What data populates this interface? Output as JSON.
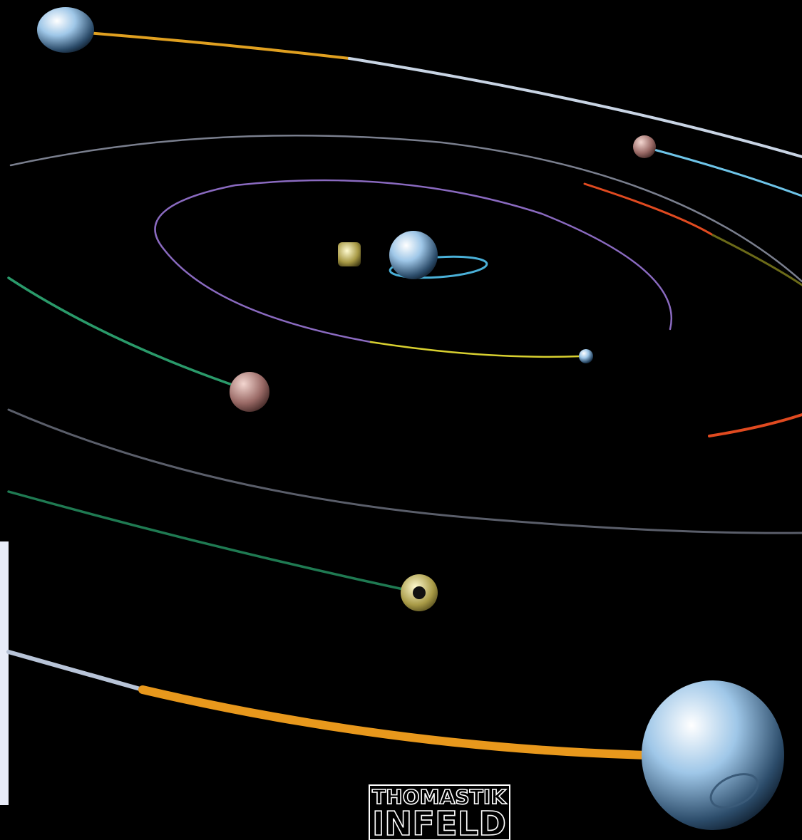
{
  "logo": {
    "line1": "THOMASTIK",
    "line2": "INFELD"
  }
}
